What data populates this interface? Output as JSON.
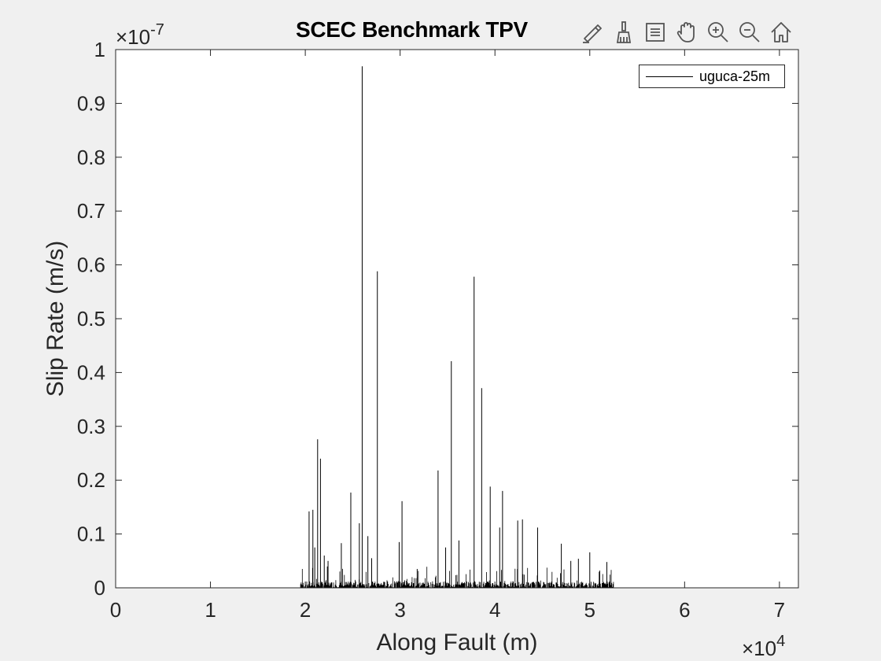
{
  "window": {
    "title": "SCEC Benchmark TPV",
    "toolbar": [
      {
        "icon": "edit-data-tip-icon",
        "tooltip": "Data Tips"
      },
      {
        "icon": "brush-icon",
        "tooltip": "Brush Data"
      },
      {
        "icon": "legend-list-icon",
        "tooltip": "Insert Legend"
      },
      {
        "icon": "pan-hand-icon",
        "tooltip": "Pan"
      },
      {
        "icon": "zoom-in-icon",
        "tooltip": "Zoom In"
      },
      {
        "icon": "zoom-out-icon",
        "tooltip": "Zoom Out"
      },
      {
        "icon": "home-icon",
        "tooltip": "Restore View"
      }
    ]
  },
  "chart_data": {
    "type": "line",
    "title": "SCEC Benchmark TPV",
    "xlabel": "Along Fault (m)",
    "ylabel": "Slip Rate (m/s)",
    "x_exponent_label": "×10",
    "x_exponent": "4",
    "y_exponent_label": "×10",
    "y_exponent": "-7",
    "xlim": [
      0,
      7.2
    ],
    "ylim": [
      0,
      1
    ],
    "x_scale_note": "values in units of 1e4 m",
    "y_scale_note": "values in units of 1e-7 m/s",
    "xticks": [
      0,
      1,
      2,
      3,
      4,
      5,
      6,
      7
    ],
    "xtick_labels": [
      "0",
      "1",
      "2",
      "3",
      "4",
      "5",
      "6",
      "7"
    ],
    "yticks": [
      0,
      0.1,
      0.2,
      0.3,
      0.4,
      0.5,
      0.6,
      0.7,
      0.8,
      0.9,
      1
    ],
    "ytick_labels": [
      "0",
      "0.1",
      "0.2",
      "0.3",
      "0.4",
      "0.5",
      "0.6",
      "0.7",
      "0.8",
      "0.9",
      "1"
    ],
    "grid": false,
    "legend_position": "top-right",
    "color": "#000000",
    "series": [
      {
        "name": "uguca-25m",
        "peaks": [
          {
            "x": 2.04,
            "y": 0.142
          },
          {
            "x": 2.08,
            "y": 0.145
          },
          {
            "x": 2.1,
            "y": 0.075
          },
          {
            "x": 2.13,
            "y": 0.276
          },
          {
            "x": 2.16,
            "y": 0.24
          },
          {
            "x": 2.2,
            "y": 0.06
          },
          {
            "x": 2.24,
            "y": 0.05
          },
          {
            "x": 2.38,
            "y": 0.083
          },
          {
            "x": 2.48,
            "y": 0.177
          },
          {
            "x": 2.57,
            "y": 0.12
          },
          {
            "x": 2.6,
            "y": 0.969
          },
          {
            "x": 2.66,
            "y": 0.096
          },
          {
            "x": 2.7,
            "y": 0.055
          },
          {
            "x": 2.76,
            "y": 0.588
          },
          {
            "x": 2.99,
            "y": 0.085
          },
          {
            "x": 3.02,
            "y": 0.161
          },
          {
            "x": 3.18,
            "y": 0.035
          },
          {
            "x": 3.4,
            "y": 0.218
          },
          {
            "x": 3.48,
            "y": 0.075
          },
          {
            "x": 3.54,
            "y": 0.421
          },
          {
            "x": 3.62,
            "y": 0.088
          },
          {
            "x": 3.78,
            "y": 0.578
          },
          {
            "x": 3.86,
            "y": 0.371
          },
          {
            "x": 3.95,
            "y": 0.188
          },
          {
            "x": 4.05,
            "y": 0.112
          },
          {
            "x": 4.08,
            "y": 0.18
          },
          {
            "x": 4.24,
            "y": 0.125
          },
          {
            "x": 4.29,
            "y": 0.127
          },
          {
            "x": 4.45,
            "y": 0.112
          },
          {
            "x": 4.7,
            "y": 0.082
          },
          {
            "x": 4.8,
            "y": 0.05
          },
          {
            "x": 4.88,
            "y": 0.054
          },
          {
            "x": 5.0,
            "y": 0.066
          },
          {
            "x": 5.1,
            "y": 0.03
          },
          {
            "x": 5.18,
            "y": 0.048
          }
        ],
        "noise_range": [
          1.95,
          5.25
        ]
      }
    ]
  }
}
